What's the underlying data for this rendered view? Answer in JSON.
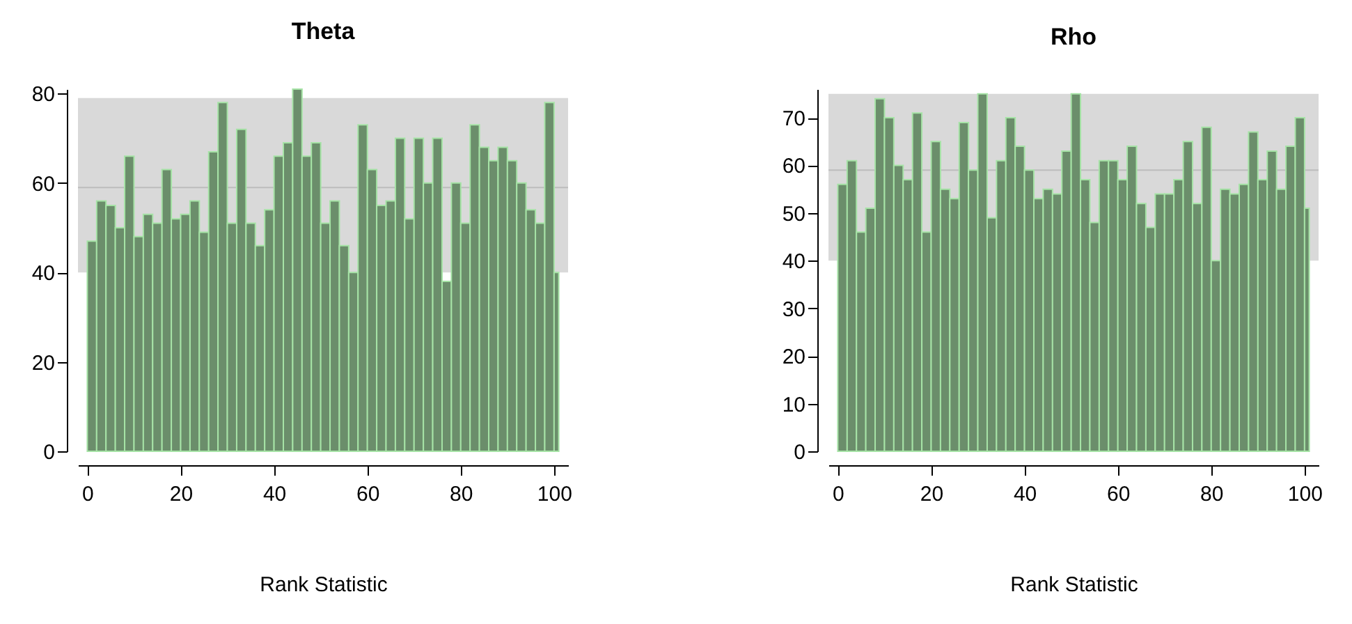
{
  "chart_data": [
    {
      "type": "histogram",
      "title": "Theta",
      "xlabel": "Rank Statistic",
      "bins": [
        0,
        2,
        4,
        6,
        8,
        10,
        12,
        14,
        16,
        18,
        20,
        22,
        24,
        26,
        28,
        30,
        32,
        34,
        36,
        38,
        40,
        42,
        44,
        46,
        48,
        50,
        52,
        54,
        56,
        58,
        60,
        62,
        64,
        66,
        68,
        70,
        72,
        74,
        76,
        78,
        80,
        82,
        84,
        86,
        88,
        90,
        92,
        94,
        96,
        98,
        100,
        101
      ],
      "values": [
        47,
        56,
        55,
        50,
        66,
        48,
        53,
        51,
        63,
        52,
        53,
        56,
        49,
        67,
        78,
        51,
        72,
        51,
        46,
        54,
        66,
        69,
        81,
        66,
        69,
        51,
        56,
        46,
        40,
        73,
        63,
        55,
        56,
        70,
        52,
        70,
        60,
        70,
        38,
        60,
        51,
        73,
        68,
        65,
        68,
        65,
        60,
        54,
        51,
        78,
        40
      ],
      "color": "#6b8e6b",
      "xlim": [
        -2,
        103
      ],
      "xticks": [
        0,
        20,
        40,
        60,
        80,
        100
      ],
      "ylim": [
        0,
        81
      ],
      "yticks": [
        0,
        20,
        40,
        60,
        80
      ],
      "bands": [
        {
          "axis": "y",
          "from": 40,
          "to": 79,
          "color": "#d9d9d9"
        }
      ],
      "ref_lines": [
        {
          "axis": "y",
          "value": 59,
          "color": "#bdbdbd"
        }
      ]
    },
    {
      "type": "histogram",
      "title": "Rho",
      "xlabel": "Rank Statistic",
      "bins": [
        0,
        2,
        4,
        6,
        8,
        10,
        12,
        14,
        16,
        18,
        20,
        22,
        24,
        26,
        28,
        30,
        32,
        34,
        36,
        38,
        40,
        42,
        44,
        46,
        48,
        50,
        52,
        54,
        56,
        58,
        60,
        62,
        64,
        66,
        68,
        70,
        72,
        74,
        76,
        78,
        80,
        82,
        84,
        86,
        88,
        90,
        92,
        94,
        96,
        98,
        100,
        101
      ],
      "values": [
        56,
        61,
        46,
        51,
        74,
        70,
        60,
        57,
        71,
        46,
        65,
        55,
        53,
        69,
        59,
        75,
        49,
        61,
        70,
        64,
        59,
        53,
        55,
        54,
        63,
        75,
        57,
        48,
        61,
        61,
        57,
        64,
        52,
        47,
        54,
        54,
        57,
        65,
        52,
        68,
        40,
        55,
        54,
        56,
        67,
        57,
        63,
        55,
        64,
        70,
        51
      ],
      "color": "#6b8e6b",
      "xlim": [
        -2,
        103
      ],
      "xticks": [
        0,
        20,
        40,
        60,
        80,
        100
      ],
      "ylim": [
        0,
        76
      ],
      "yticks": [
        0,
        10,
        20,
        30,
        40,
        50,
        60,
        70
      ],
      "bands": [
        {
          "axis": "y",
          "from": 40,
          "to": 75,
          "color": "#d9d9d9"
        }
      ],
      "ref_lines": [
        {
          "axis": "y",
          "value": 59,
          "color": "#bdbdbd"
        }
      ]
    }
  ]
}
